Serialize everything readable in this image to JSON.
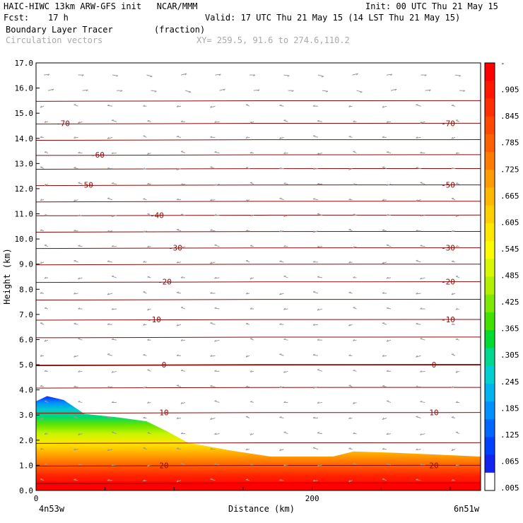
{
  "header": {
    "line1_left": "HAIC-HIWC 13km ARW-GFS init   NCAR/MMM",
    "line1_right": "Init: 00 UTC Thu 21 May 15",
    "fcst_label": "Fcst:",
    "fcst_value": "17 h",
    "valid_text": "Valid: 17 UTC Thu 21 May 15 (14 LST Thu 21 May 15)",
    "field_name": "Boundary Layer Tracer",
    "field_units": "(fraction)",
    "overlay_name": "Circulation vectors",
    "xy_text": "XY= 259.5, 91.6 to 274.6,110.2"
  },
  "chart_data": {
    "type": "heatmap",
    "title": "Boundary Layer Tracer",
    "ylabel": "Height (km)",
    "xlabel": "Distance (km)",
    "xlim": [
      0,
      322
    ],
    "ylim": [
      0.0,
      17.0
    ],
    "y_ticks": [
      "0.0",
      "1.0",
      "2.0",
      "3.0",
      "4.0",
      "5.0",
      "6.0",
      "7.0",
      "8.0",
      "9.0",
      "10.0",
      "11.0",
      "12.0",
      "13.0",
      "14.0",
      "15.0",
      "16.0",
      "17.0"
    ],
    "x_ticks": [
      {
        "value": 0,
        "label": "0"
      },
      {
        "value": 200,
        "label": "200"
      }
    ],
    "x_end_labels": {
      "left": "4n53w",
      "right": "6n51w"
    },
    "pbl_top_km": [
      {
        "x": 0,
        "y": 3.55
      },
      {
        "x": 8,
        "y": 3.75
      },
      {
        "x": 20,
        "y": 3.6
      },
      {
        "x": 35,
        "y": 3.05
      },
      {
        "x": 60,
        "y": 2.9
      },
      {
        "x": 80,
        "y": 2.75
      },
      {
        "x": 95,
        "y": 2.35
      },
      {
        "x": 110,
        "y": 1.9
      },
      {
        "x": 140,
        "y": 1.6
      },
      {
        "x": 170,
        "y": 1.35
      },
      {
        "x": 215,
        "y": 1.35
      },
      {
        "x": 230,
        "y": 1.55
      },
      {
        "x": 260,
        "y": 1.5
      },
      {
        "x": 322,
        "y": 1.35
      }
    ],
    "isotherms": [
      {
        "label": "20",
        "y_km": 1.0
      },
      {
        "label": "10",
        "y_km": 3.1
      },
      {
        "label": "0",
        "y_km": 5.0
      },
      {
        "label": "-10",
        "y_km": 6.8
      },
      {
        "label": "-20",
        "y_km": 8.3
      },
      {
        "label": "-30",
        "y_km": 9.65
      },
      {
        "label": "-40",
        "y_km": 10.95
      },
      {
        "label": "-50",
        "y_km": 12.15
      },
      {
        "label": "-60",
        "y_km": 13.35
      },
      {
        "label": "-70",
        "y_km": 14.6
      }
    ],
    "temp_line_levels_km": [
      0.3,
      1.0,
      1.9,
      3.1,
      4.1,
      5.0,
      6.1,
      6.8,
      7.6,
      8.3,
      9.0,
      9.65,
      10.3,
      10.95,
      11.5,
      12.15,
      12.8,
      13.35,
      13.95,
      14.6,
      15.5
    ],
    "colorbar": {
      "labels": [
        "-",
        ".905",
        ".845",
        ".785",
        ".725",
        ".665",
        ".605",
        ".545",
        ".485",
        ".425",
        ".365",
        ".305",
        ".245",
        ".185",
        ".125",
        ".065",
        ".005"
      ],
      "colors": [
        "#ff0000",
        "#ff1800",
        "#ff3000",
        "#ff4800",
        "#ff6000",
        "#ff7c00",
        "#ff9c00",
        "#ffb800",
        "#ffd000",
        "#ffe800",
        "#fcfc00",
        "#d8f800",
        "#b0f000",
        "#7ee800",
        "#44e000",
        "#00dc30",
        "#00d890",
        "#00d0d0",
        "#00b4f0",
        "#0090ff",
        "#0068ff",
        "#0040ff",
        "#1424f0",
        "#ffffff"
      ]
    }
  }
}
